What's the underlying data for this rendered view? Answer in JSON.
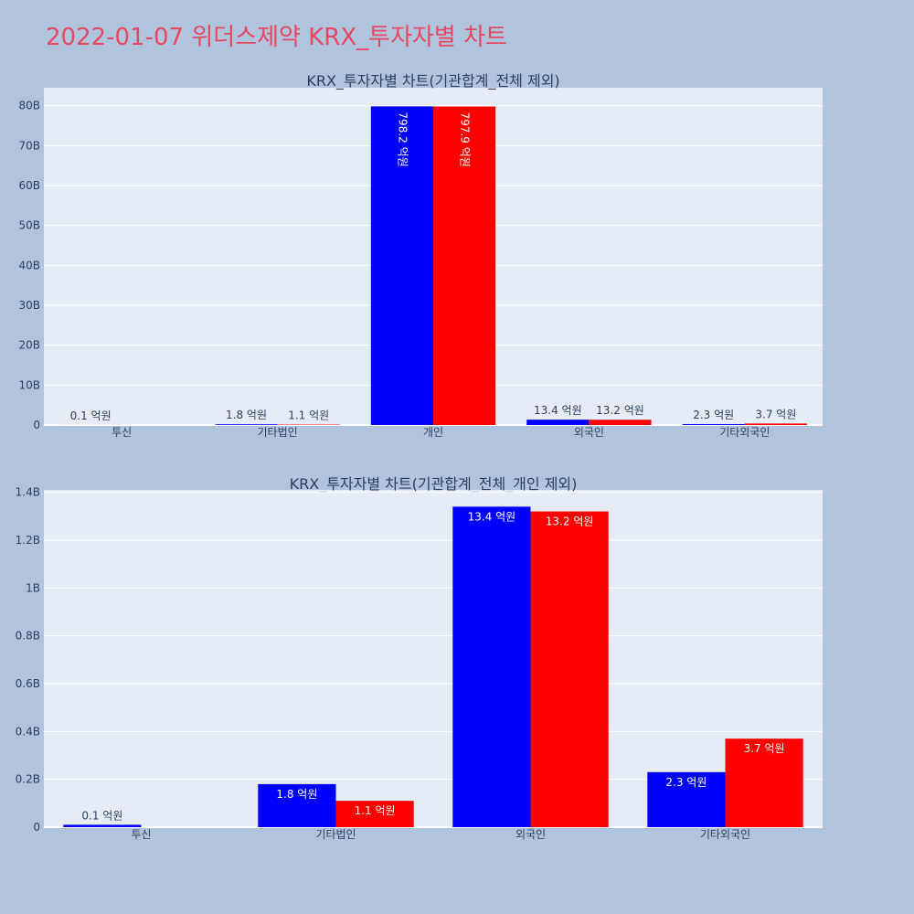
{
  "title": "2022-01-07 위더스제약 KRX_투자자별 차트",
  "colors": {
    "buy": "#0000ff",
    "sell": "#ff0000",
    "title": "#e8485f",
    "plot_bg": "#e5ecf6",
    "page_bg": "#b0c4de"
  },
  "chart_data": [
    {
      "type": "bar",
      "title": "KRX_투자자별 차트(기관합계_전체 제외)",
      "categories": [
        "투신",
        "기타법인",
        "개인",
        "외국인",
        "기타외국인"
      ],
      "series": [
        {
          "name": "buy",
          "values": [
            0.01,
            0.18,
            79.82,
            1.34,
            0.23
          ],
          "labels": [
            "0.1 억원",
            "1.8 억원",
            "798.2 억원",
            "13.4 억원",
            "2.3 억원"
          ]
        },
        {
          "name": "sell",
          "values": [
            0,
            0.11,
            79.79,
            1.32,
            0.37
          ],
          "labels": [
            "",
            "1.1 억원",
            "797.9 억원",
            "13.2 억원",
            "3.7 억원"
          ]
        }
      ],
      "yticks": [
        0,
        10,
        20,
        30,
        40,
        50,
        60,
        70,
        80
      ],
      "ytick_labels": [
        "0",
        "10B",
        "20B",
        "30B",
        "40B",
        "50B",
        "60B",
        "70B",
        "80B"
      ],
      "ylim": [
        0,
        84.5
      ],
      "label_mode": "dominant-inside-vertical"
    },
    {
      "type": "bar",
      "title": "KRX_투자자별 차트(기관합계_전체_개인 제외)",
      "categories": [
        "투신",
        "기타법인",
        "외국인",
        "기타외국인"
      ],
      "series": [
        {
          "name": "buy",
          "values": [
            0.01,
            0.18,
            1.34,
            0.23
          ],
          "labels": [
            "0.1 억원",
            "1.8 억원",
            "13.4 억원",
            "2.3 억원"
          ]
        },
        {
          "name": "sell",
          "values": [
            0,
            0.11,
            1.32,
            0.37
          ],
          "labels": [
            "",
            "1.1 억원",
            "13.2 억원",
            "3.7 억원"
          ]
        }
      ],
      "yticks": [
        0,
        0.2,
        0.4,
        0.6,
        0.8,
        1.0,
        1.2,
        1.4
      ],
      "ytick_labels": [
        "0",
        "0.2B",
        "0.4B",
        "0.6B",
        "0.8B",
        "1B",
        "1.2B",
        "1.4B"
      ],
      "ylim": [
        0,
        1.41
      ],
      "label_mode": "inside"
    }
  ]
}
